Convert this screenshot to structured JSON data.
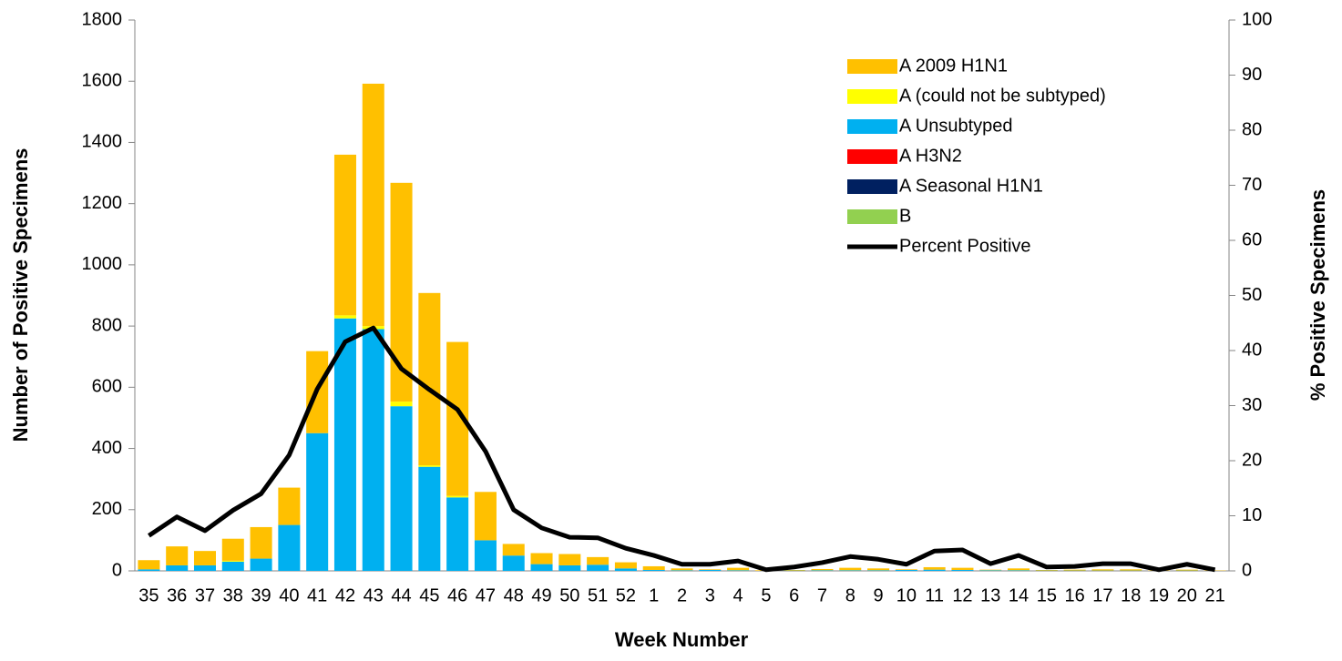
{
  "chart_data": {
    "type": "bar",
    "stacked": true,
    "y_label": "Number of Positive Specimens",
    "y2_label": "% Positive Specimens",
    "x_label": "Week Number",
    "categories": [
      "35",
      "36",
      "37",
      "38",
      "39",
      "40",
      "41",
      "42",
      "43",
      "44",
      "45",
      "46",
      "47",
      "48",
      "49",
      "50",
      "51",
      "52",
      "1",
      "2",
      "3",
      "4",
      "5",
      "6",
      "7",
      "8",
      "9",
      "10",
      "11",
      "12",
      "13",
      "14",
      "15",
      "16",
      "17",
      "18",
      "19",
      "20",
      "21"
    ],
    "series": [
      {
        "name": "B",
        "color": "#92D050",
        "values": [
          0,
          0,
          0,
          0,
          0,
          0,
          0,
          0,
          0,
          0,
          0,
          0,
          0,
          0,
          0,
          0,
          0,
          0,
          0,
          0,
          0,
          0,
          0,
          0,
          0,
          0,
          0,
          0,
          0,
          0,
          0,
          0,
          0,
          0,
          0,
          0,
          0,
          0,
          0
        ]
      },
      {
        "name": "A Seasonal H1N1",
        "color": "#002060",
        "values": [
          0,
          0,
          0,
          0,
          0,
          0,
          0,
          0,
          0,
          0,
          0,
          0,
          0,
          0,
          0,
          0,
          0,
          0,
          0,
          0,
          0,
          0,
          0,
          0,
          0,
          0,
          0,
          0,
          0,
          0,
          0,
          0,
          0,
          0,
          0,
          0,
          0,
          0,
          0
        ]
      },
      {
        "name": "A H3N2",
        "color": "#FF0000",
        "values": [
          0,
          0,
          0,
          0,
          0,
          0,
          0,
          0,
          0,
          0,
          0,
          0,
          0,
          0,
          0,
          0,
          0,
          0,
          0,
          0,
          0,
          0,
          0,
          0,
          0,
          0,
          0,
          0,
          0,
          0,
          0,
          0,
          0,
          0,
          0,
          0,
          0,
          0,
          0
        ]
      },
      {
        "name": "A Unsubtyped",
        "color": "#00B0F0",
        "values": [
          5,
          18,
          18,
          30,
          40,
          150,
          450,
          825,
          790,
          538,
          340,
          240,
          100,
          50,
          22,
          18,
          20,
          8,
          3,
          2,
          3,
          2,
          0,
          1,
          2,
          2,
          2,
          3,
          4,
          3,
          2,
          2,
          1,
          1,
          1,
          1,
          0,
          1,
          0
        ]
      },
      {
        "name": "A (could not be subtyped)",
        "color": "#FFFF00",
        "values": [
          0,
          0,
          0,
          3,
          0,
          0,
          0,
          10,
          10,
          15,
          5,
          5,
          0,
          0,
          0,
          0,
          0,
          0,
          0,
          0,
          0,
          0,
          0,
          0,
          0,
          0,
          0,
          0,
          0,
          0,
          0,
          0,
          0,
          0,
          0,
          0,
          0,
          0,
          0
        ]
      },
      {
        "name": "A 2009 H1N1",
        "color": "#FFC000",
        "values": [
          30,
          62,
          47,
          72,
          103,
          122,
          268,
          525,
          792,
          715,
          563,
          503,
          158,
          38,
          36,
          37,
          25,
          20,
          12,
          6,
          2,
          8,
          2,
          2,
          4,
          8,
          6,
          2,
          8,
          7,
          2,
          6,
          2,
          3,
          4,
          4,
          1,
          3,
          1
        ]
      },
      {
        "name": "Percent Positive",
        "type": "line",
        "axis": "y2",
        "color": "#000000",
        "values": [
          6.4,
          9.8,
          7.3,
          11,
          14,
          21,
          33,
          41.6,
          44.1,
          36.7,
          32.9,
          29.3,
          21.7,
          11.1,
          7.8,
          6.1,
          6,
          4.1,
          2.8,
          1.2,
          1.2,
          1.8,
          0.2,
          0.7,
          1.5,
          2.6,
          2.1,
          1.2,
          3.6,
          3.8,
          1.3,
          2.8,
          0.7,
          0.8,
          1.3,
          1.3,
          0.2,
          1.2,
          0.2
        ]
      }
    ],
    "legend_order": [
      5,
      4,
      3,
      2,
      1,
      0,
      6
    ],
    "legend_position": "top-right",
    "ylim": [
      0,
      1800
    ],
    "yticks": [
      0,
      200,
      400,
      600,
      800,
      1000,
      1200,
      1400,
      1600,
      1800
    ],
    "y2lim": [
      0,
      100
    ],
    "y2ticks": [
      0,
      10,
      20,
      30,
      40,
      50,
      60,
      70,
      80,
      90,
      100
    ],
    "grid": false
  }
}
